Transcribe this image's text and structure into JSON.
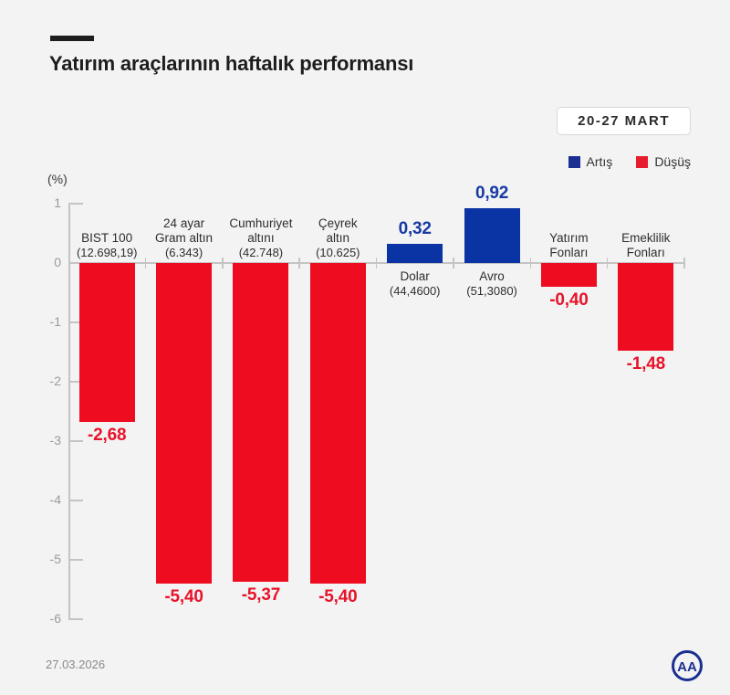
{
  "header": {
    "title": "Yatırım araçlarının haftalık performansı",
    "period_badge": "20-27 MART"
  },
  "footer": {
    "date": "27.03.2026",
    "logo_text": "AA"
  },
  "colors": {
    "background": "#f3f3f3",
    "bar_up": "#0a33a3",
    "bar_down": "#ee0c21",
    "value_up_text": "#1639a5",
    "value_down_text": "#e8132a",
    "legend_up": "#1b2f90",
    "legend_down": "#e51d2c",
    "axis": "#c4c4c4",
    "tick_text": "#9a9a9a",
    "label_text": "#2e2e2e"
  },
  "chart_data": {
    "type": "bar",
    "title": "Yatırım araçlarının haftalık performansı",
    "unit_label": "(%)",
    "period": "20-27 MART",
    "ylabel": "(%)",
    "ylim": [
      -6,
      1
    ],
    "yticks": [
      1,
      0,
      -1,
      -2,
      -3,
      -4,
      -5,
      -6
    ],
    "grid": false,
    "legend_position": "top-right",
    "legend": [
      {
        "label": "Artış",
        "direction": "up"
      },
      {
        "label": "Düşüş",
        "direction": "down"
      }
    ],
    "categories": [
      {
        "name_lines": [
          "BIST 100"
        ],
        "sub": "(12.698,19)",
        "value": -2.68,
        "value_label": "-2,68"
      },
      {
        "name_lines": [
          "24 ayar",
          "Gram altın"
        ],
        "sub": "(6.343)",
        "value": -5.4,
        "value_label": "-5,40"
      },
      {
        "name_lines": [
          "Cumhuriyet",
          "altını"
        ],
        "sub": "(42.748)",
        "value": -5.37,
        "value_label": "-5,37"
      },
      {
        "name_lines": [
          "Çeyrek",
          "altın"
        ],
        "sub": "(10.625)",
        "value": -5.4,
        "value_label": "-5,40"
      },
      {
        "name_lines": [
          "Dolar"
        ],
        "sub": "(44,4600)",
        "value": 0.32,
        "value_label": "0,32"
      },
      {
        "name_lines": [
          "Avro"
        ],
        "sub": "(51,3080)",
        "value": 0.92,
        "value_label": "0,92"
      },
      {
        "name_lines": [
          "Yatırım",
          "Fonları"
        ],
        "sub": null,
        "value": -0.4,
        "value_label": "-0,40"
      },
      {
        "name_lines": [
          "Emeklilik",
          "Fonları"
        ],
        "sub": null,
        "value": -1.48,
        "value_label": "-1,48"
      }
    ]
  }
}
